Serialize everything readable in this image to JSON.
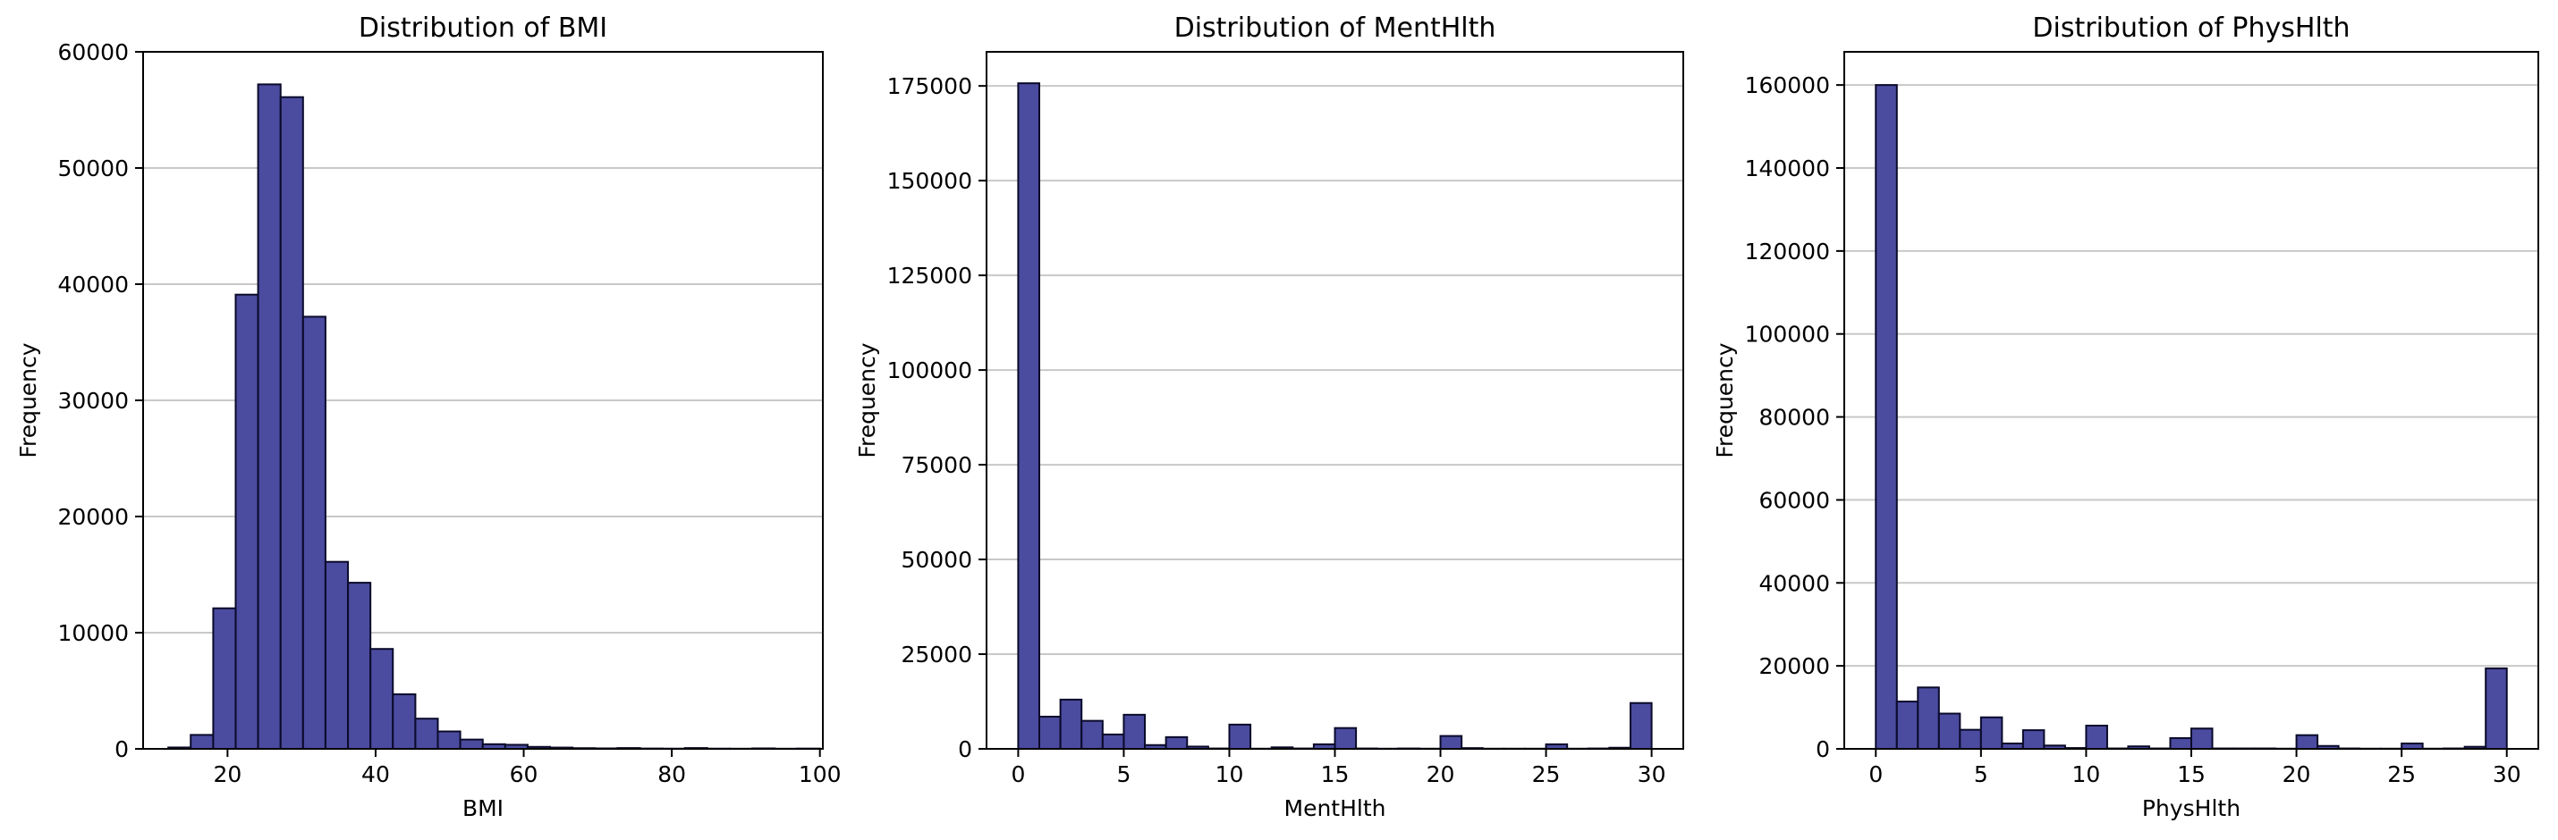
{
  "chart_data": [
    {
      "type": "bar",
      "title": "Distribution of BMI",
      "xlabel": "BMI",
      "ylabel": "Frequency",
      "xlim": [
        8.6,
        100.4
      ],
      "ylim": [
        0,
        60000
      ],
      "xticks": [
        "20",
        "40",
        "60",
        "80",
        "100"
      ],
      "yticks": [
        "0",
        "10000",
        "20000",
        "30000",
        "40000",
        "50000",
        "60000"
      ],
      "grid": "y",
      "bin_edges": [
        12,
        15.03,
        18.07,
        21.1,
        24.13,
        27.17,
        30.2,
        33.23,
        36.27,
        39.3,
        42.33,
        45.37,
        48.4,
        51.43,
        54.47,
        57.5,
        60.53,
        63.57,
        66.6,
        69.63,
        72.67,
        75.7,
        78.73,
        81.77,
        84.8,
        87.83,
        90.87,
        93.9,
        96.93,
        100
      ],
      "values": [
        120,
        1200,
        12100,
        39100,
        57200,
        56100,
        37200,
        16100,
        14300,
        8600,
        4700,
        2600,
        1500,
        800,
        400,
        350,
        170,
        110,
        60,
        40,
        70,
        30,
        20,
        70,
        20,
        15,
        40,
        15,
        25
      ]
    },
    {
      "type": "bar",
      "title": "Distribution of MentHlth",
      "xlabel": "MentHlth",
      "ylabel": "Frequency",
      "xlim": [
        -1.5,
        31.5
      ],
      "ylim": [
        0,
        184000
      ],
      "xticks": [
        "0",
        "5",
        "10",
        "15",
        "20",
        "25",
        "30"
      ],
      "yticks": [
        "0",
        "25000",
        "50000",
        "75000",
        "100000",
        "125000",
        "150000",
        "175000"
      ],
      "grid": "y",
      "bin_edges": [
        0,
        1,
        2,
        3,
        4,
        5,
        6,
        7,
        8,
        9,
        10,
        11,
        12,
        13,
        14,
        15,
        16,
        17,
        18,
        19,
        20,
        21,
        22,
        23,
        24,
        25,
        26,
        27,
        28,
        29,
        30
      ],
      "values": [
        175700,
        8500,
        13000,
        7400,
        3800,
        9000,
        1000,
        3100,
        600,
        100,
        6400,
        50,
        400,
        100,
        1200,
        5500,
        100,
        50,
        100,
        50,
        3400,
        200,
        50,
        50,
        50,
        1200,
        50,
        100,
        300,
        12100
      ]
    },
    {
      "type": "bar",
      "title": "Distribution of PhysHlth",
      "xlabel": "PhysHlth",
      "ylabel": "Frequency",
      "xlim": [
        -1.5,
        31.5
      ],
      "ylim": [
        0,
        168000
      ],
      "xticks": [
        "0",
        "5",
        "10",
        "15",
        "20",
        "25",
        "30"
      ],
      "yticks": [
        "0",
        "20000",
        "40000",
        "60000",
        "80000",
        "100000",
        "120000",
        "140000",
        "160000"
      ],
      "grid": "y",
      "bin_edges": [
        0,
        1,
        2,
        3,
        4,
        5,
        6,
        7,
        8,
        9,
        10,
        11,
        12,
        13,
        14,
        15,
        16,
        17,
        18,
        19,
        20,
        21,
        22,
        23,
        24,
        25,
        26,
        27,
        28,
        29,
        30
      ],
      "values": [
        160000,
        11400,
        14800,
        8500,
        4600,
        7600,
        1300,
        4500,
        800,
        200,
        5600,
        100,
        600,
        100,
        2600,
        4900,
        100,
        100,
        100,
        50,
        3300,
        700,
        100,
        50,
        50,
        1300,
        50,
        100,
        500,
        19400
      ]
    }
  ],
  "colors": {
    "bar_fill": "#4b4ba0",
    "bar_edge": "#0a0a2a",
    "grid": "#c8c8c8",
    "axes": "#000000"
  }
}
